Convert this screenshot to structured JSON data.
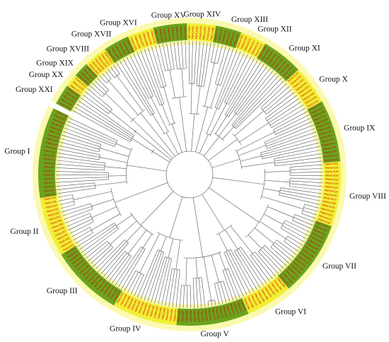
{
  "figure": {
    "groups": [
      {
        "label": "Group I",
        "color": "#6aa51e",
        "start": 171,
        "end": 206
      },
      {
        "label": "Group II",
        "color": "#f2ef34",
        "start": 148,
        "end": 171
      },
      {
        "label": "Group III",
        "color": "#6aa51e",
        "start": 120,
        "end": 148
      },
      {
        "label": "Group IV",
        "color": "#f2ef34",
        "start": 95,
        "end": 120
      },
      {
        "label": "Group V",
        "color": "#6aa51e",
        "start": 67,
        "end": 95
      },
      {
        "label": "Group VI",
        "color": "#f2ef34",
        "start": 49,
        "end": 67
      },
      {
        "label": "Group VII",
        "color": "#6aa51e",
        "start": 20,
        "end": 49
      },
      {
        "label": "Group VIII",
        "color": "#f2ef34",
        "start": -5,
        "end": 20
      },
      {
        "label": "Group IX",
        "color": "#6aa51e",
        "start": -29,
        "end": -5
      },
      {
        "label": "Group X",
        "color": "#f2ef34",
        "start": -44,
        "end": -29
      },
      {
        "label": "Group XI",
        "color": "#6aa51e",
        "start": -60,
        "end": -44
      },
      {
        "label": "Group XII",
        "color": "#f2ef34",
        "start": -70,
        "end": -60
      },
      {
        "label": "Group XIII",
        "color": "#6aa51e",
        "start": -80,
        "end": -70
      },
      {
        "label": "Group XIV",
        "color": "#f2ef34",
        "start": -91,
        "end": -80
      },
      {
        "label": "Group XV",
        "color": "#6aa51e",
        "start": -104,
        "end": -91
      },
      {
        "label": "Group XVI",
        "color": "#f2ef34",
        "start": -114,
        "end": -104
      },
      {
        "label": "Group XVII",
        "color": "#6aa51e",
        "start": -124,
        "end": -114
      },
      {
        "label": "Group XVIII",
        "color": "#f2ef34",
        "start": -133,
        "end": -124
      },
      {
        "label": "Group XIX",
        "color": "#6aa51e",
        "start": -139,
        "end": -133
      },
      {
        "label": "Group XX",
        "color": "#f2ef34",
        "start": -144,
        "end": -139
      },
      {
        "label": "Group XXI",
        "color": "#6aa51e",
        "start": -152,
        "end": -144
      }
    ],
    "leaf_prefix": "PtbHLH"
  }
}
